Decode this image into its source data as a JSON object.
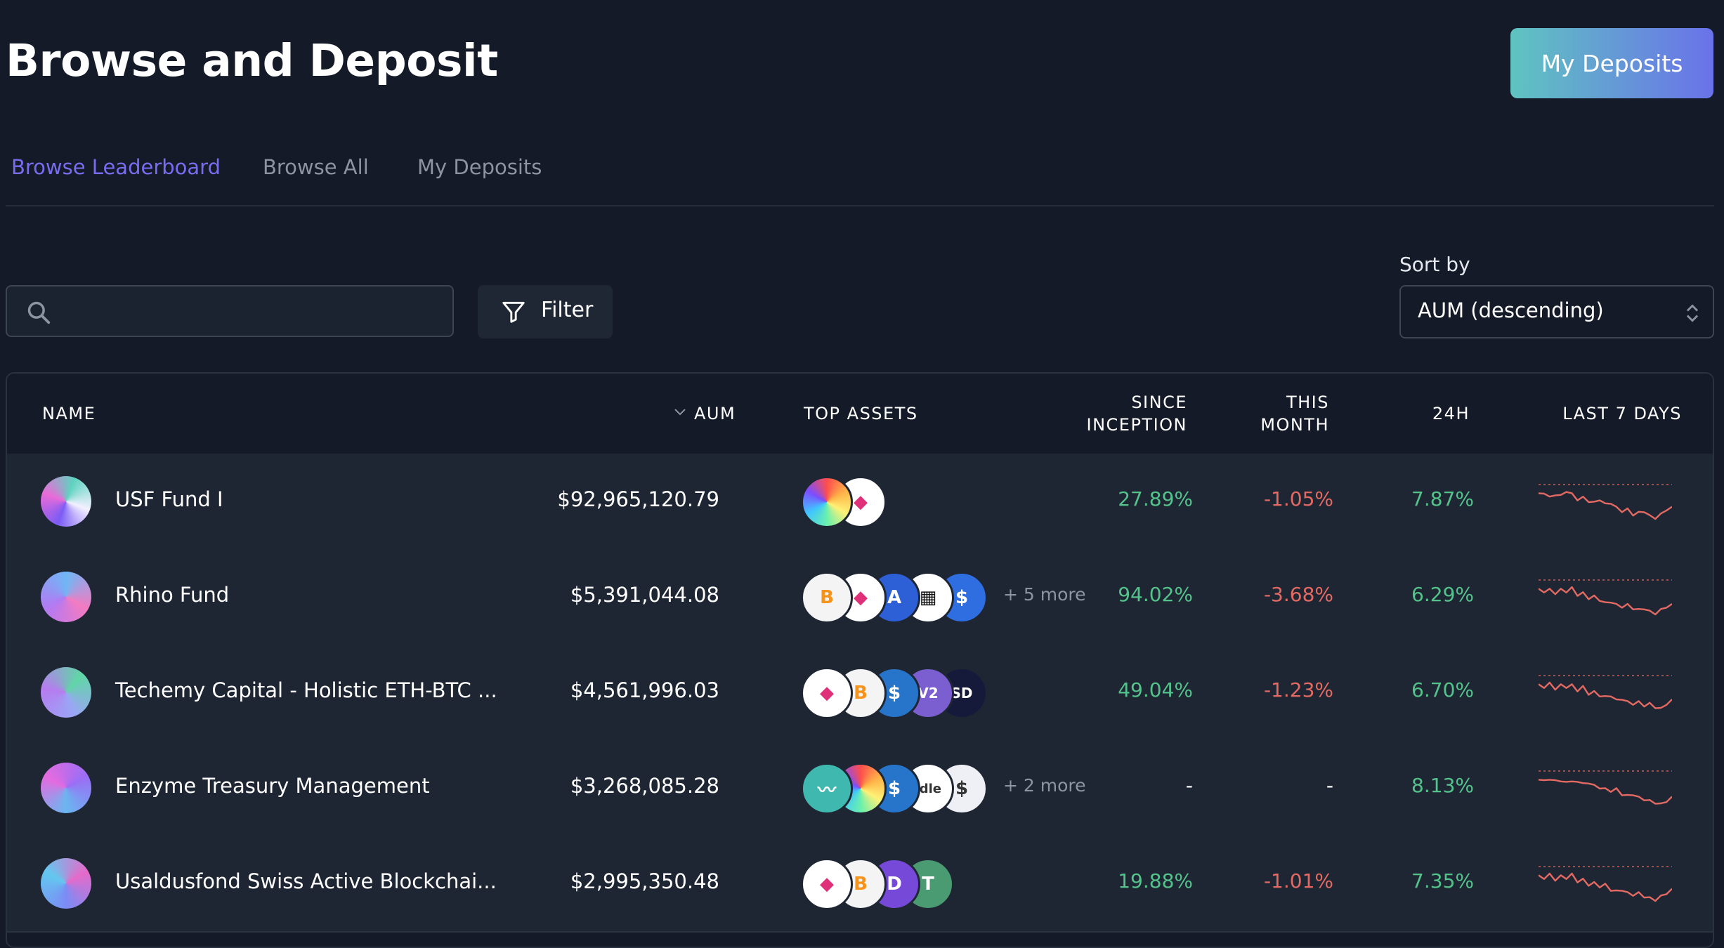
{
  "page": {
    "title": "Browse and Deposit",
    "header_button": "My Deposits"
  },
  "tabs": [
    {
      "label": "Browse Leaderboard",
      "active": true
    },
    {
      "label": "Browse All",
      "active": false
    },
    {
      "label": "My Deposits",
      "active": false
    }
  ],
  "search": {
    "placeholder": "",
    "value": "",
    "icon": "search-icon"
  },
  "filter": {
    "label": "Filter",
    "icon": "filter-icon"
  },
  "sort": {
    "label": "Sort by",
    "value": "AUM (descending)"
  },
  "table": {
    "columns": {
      "name": "NAME",
      "aum": "AUM",
      "top_assets": "TOP ASSETS",
      "since_inception_1": "SINCE",
      "since_inception_2": "INCEPTION",
      "this_month_1": "THIS",
      "this_month_2": "MONTH",
      "h24": "24H",
      "last7": "LAST 7 DAYS"
    },
    "sorted_column": "AUM",
    "rows": [
      {
        "name": "USF Fund I",
        "aum": "$92,965,120.79",
        "assets": [
          "rainbow",
          "eth"
        ],
        "more": "",
        "since_inception": "27.89%",
        "this_month": "-1.05%",
        "h24": "7.87%",
        "spark": [
          0.3,
          0.25,
          0.4,
          0.3,
          0.35,
          0.2,
          0.3,
          0.45,
          0.4,
          0.5,
          0.55,
          0.45,
          0.6,
          0.55,
          0.7,
          0.8,
          0.75,
          0.9,
          0.85,
          0.8,
          0.95,
          1.0,
          0.9,
          0.75,
          0.7
        ]
      },
      {
        "name": "Rhino Fund",
        "aum": "$5,391,044.08",
        "assets": [
          "btc",
          "eth",
          "arb",
          "stripe",
          "usds"
        ],
        "more": "+ 5 more",
        "since_inception": "94.02%",
        "this_month": "-3.68%",
        "h24": "6.29%",
        "spark": [
          0.3,
          0.35,
          0.3,
          0.4,
          0.3,
          0.35,
          0.25,
          0.45,
          0.4,
          0.55,
          0.5,
          0.6,
          0.7,
          0.65,
          0.75,
          0.8,
          0.75,
          0.85,
          0.9,
          0.85,
          0.95,
          1.0,
          0.9,
          0.8,
          0.75
        ]
      },
      {
        "name": "Techemy Capital - Holistic ETH-BTC ...",
        "aum": "$4,561,996.03",
        "assets": [
          "eth",
          "btc",
          "usdc",
          "v2",
          "sd"
        ],
        "more": "",
        "since_inception": "49.04%",
        "this_month": "-1.23%",
        "h24": "6.70%",
        "spark": [
          0.3,
          0.35,
          0.25,
          0.4,
          0.3,
          0.35,
          0.3,
          0.45,
          0.35,
          0.55,
          0.5,
          0.6,
          0.65,
          0.6,
          0.75,
          0.7,
          0.8,
          0.85,
          0.8,
          0.9,
          0.85,
          0.95,
          1.0,
          0.85,
          0.75
        ]
      },
      {
        "name": "Enzyme Treasury Management",
        "aum": "$3,268,085.28",
        "assets": [
          "wave",
          "rainbow",
          "usdc",
          "idle",
          "usd"
        ],
        "more": "+ 2 more",
        "since_inception": "-",
        "this_month": "-",
        "h24": "8.13%",
        "spark": [
          0.3,
          0.25,
          0.3,
          0.25,
          0.35,
          0.3,
          0.35,
          0.3,
          0.4,
          0.35,
          0.45,
          0.5,
          0.55,
          0.6,
          0.55,
          0.7,
          0.75,
          0.7,
          0.8,
          0.85,
          0.9,
          0.95,
          1.0,
          0.9,
          0.8
        ]
      },
      {
        "name": "Usaldusfond Swiss Active Blockchai...",
        "aum": "$2,995,350.48",
        "assets": [
          "eth",
          "btc",
          "dpi",
          "usdt"
        ],
        "more": "",
        "since_inception": "19.88%",
        "this_month": "-1.01%",
        "h24": "7.35%",
        "spark": [
          0.3,
          0.35,
          0.25,
          0.4,
          0.3,
          0.35,
          0.25,
          0.45,
          0.4,
          0.55,
          0.5,
          0.6,
          0.55,
          0.7,
          0.75,
          0.7,
          0.8,
          0.85,
          0.8,
          0.9,
          0.95,
          1.0,
          0.9,
          0.8,
          0.7
        ]
      }
    ]
  },
  "colors": {
    "background": "#141a27",
    "row": "#1f2633",
    "positive": "#53c28b",
    "negative": "#e36a63",
    "accent": "#7a6cf0"
  }
}
